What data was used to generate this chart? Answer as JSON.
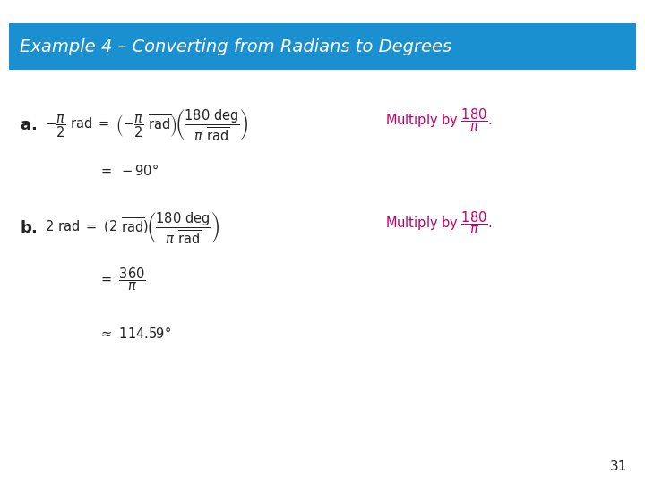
{
  "title": "Example 4 – Converting from Radians to Degrees",
  "title_bg_color": "#1a90d0",
  "title_text_color": "#ffffff",
  "body_bg_color": "#ffffff",
  "page_number": "31",
  "magenta_color": "#c0006a",
  "black_color": "#222222",
  "fig_width": 7.2,
  "fig_height": 5.4,
  "title_fontsize": 14,
  "body_fontsize": 10.5
}
